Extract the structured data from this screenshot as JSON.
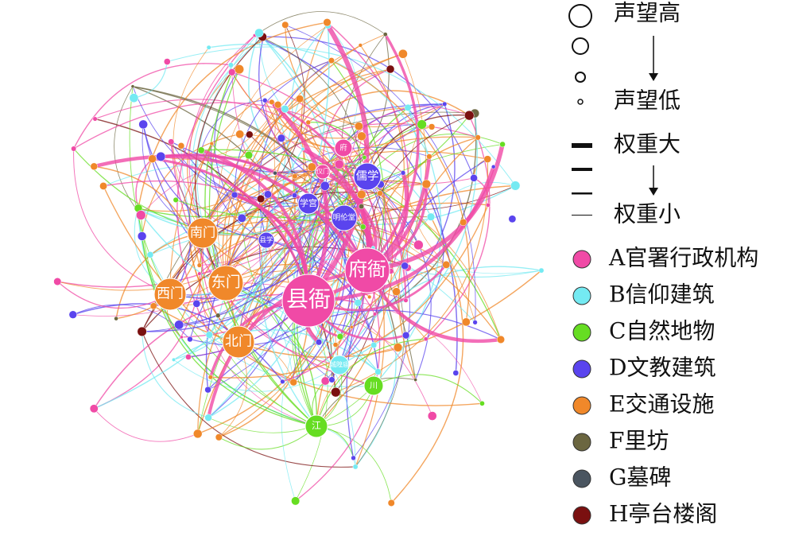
{
  "legend": {
    "size": {
      "high": "声望高",
      "low": "声望低"
    },
    "weight": {
      "high": "权重大",
      "low": "权重小"
    },
    "categories": [
      {
        "label": "A官署行政机构",
        "color": "#f04aa6"
      },
      {
        "label": "B信仰建筑",
        "color": "#74eaf2"
      },
      {
        "label": "C自然地物",
        "color": "#66dd22"
      },
      {
        "label": "D文教建筑",
        "color": "#5a44ee"
      },
      {
        "label": "E交通设施",
        "color": "#f0882a"
      },
      {
        "label": "F里坊",
        "color": "#6b6640"
      },
      {
        "label": "G墓碑",
        "color": "#4a5560"
      },
      {
        "label": "H亭台楼阁",
        "color": "#7a1010"
      }
    ]
  },
  "nodes": [
    {
      "label": "县衙",
      "color": "#f04aa6"
    },
    {
      "label": "府衙",
      "color": "#f04aa6"
    },
    {
      "label": "东门",
      "color": "#f0882a"
    },
    {
      "label": "西门",
      "color": "#f0882a"
    },
    {
      "label": "南门",
      "color": "#f0882a"
    },
    {
      "label": "北门",
      "color": "#f0882a"
    },
    {
      "label": "儒学",
      "color": "#5a44ee"
    },
    {
      "label": "学宫",
      "color": "#5a44ee"
    },
    {
      "label": "明伦堂",
      "color": "#5a44ee"
    },
    {
      "label": "府",
      "color": "#f04aa6"
    },
    {
      "label": "仪门",
      "color": "#f04aa6"
    },
    {
      "label": "县学",
      "color": "#5a44ee"
    },
    {
      "label": "江",
      "color": "#66dd22"
    },
    {
      "label": "川",
      "color": "#66dd22"
    },
    {
      "label": "城隍庙",
      "color": "#74eaf2"
    }
  ]
}
